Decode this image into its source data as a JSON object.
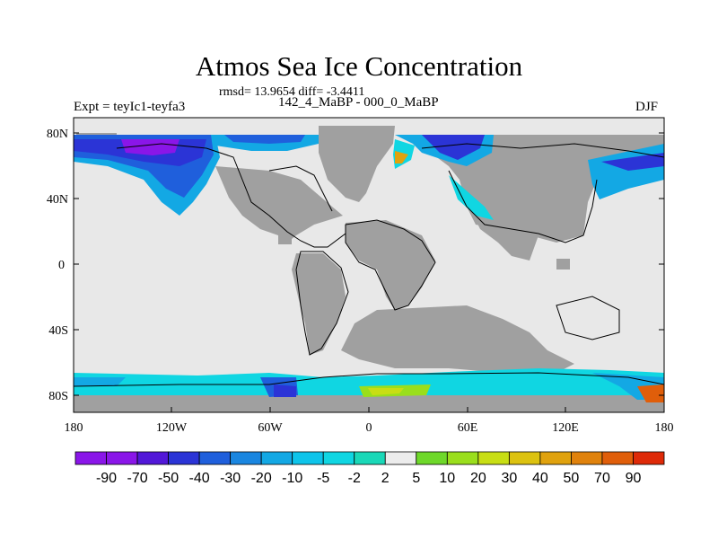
{
  "title": "Atmos Sea Ice Concentration",
  "stats": "rmsd= 13.9654 diff= -3.4411",
  "expt": "Expt = teyIc1-teyfa3",
  "case": "142_4_MaBP - 000_0_MaBP",
  "season": "DJF",
  "lat_labels": [
    "80N",
    "40N",
    "0",
    "40S",
    "80S"
  ],
  "lon_labels": [
    "180",
    "120W",
    "60W",
    "0",
    "60E",
    "120E",
    "180"
  ],
  "colorbar": {
    "labels": [
      "-90",
      "-70",
      "-50",
      "-40",
      "-30",
      "-20",
      "-10",
      "-5",
      "-2",
      "2",
      "5",
      "10",
      "20",
      "30",
      "40",
      "50",
      "70",
      "90"
    ],
    "colors": [
      "#8a16e8",
      "#5218d8",
      "#2b34d6",
      "#1f5fdc",
      "#1a86e0",
      "#13a8e4",
      "#0ec4ea",
      "#10d6e2",
      "#1ad8b8",
      "#ececec",
      "#6ed82a",
      "#9ade1c",
      "#c8de14",
      "#dcc210",
      "#e0a20e",
      "#e0820c",
      "#e05e0a",
      "#de2a08"
    ]
  },
  "colors": {
    "land": "#a0a0a0",
    "ocean_no_change": "#e8e8e8",
    "coastline": "#000000"
  }
}
